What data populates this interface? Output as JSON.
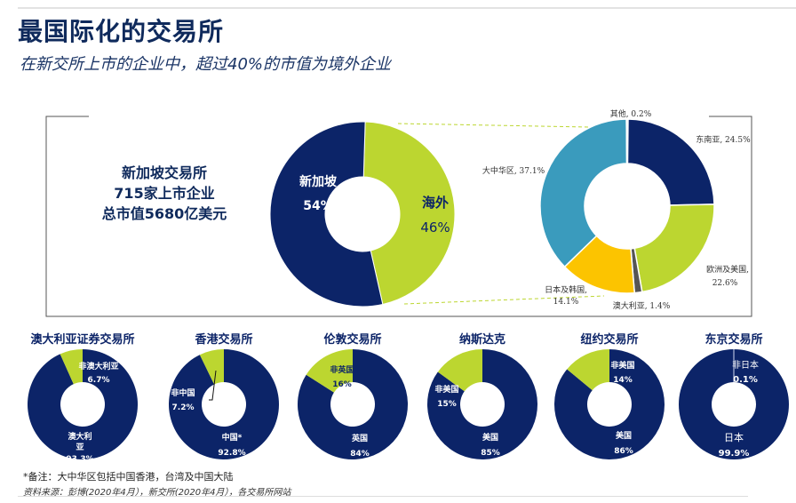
{
  "header": {
    "title": "最国际化的交易所",
    "subtitle": "在新交所上市的企业中，超过40%的市值为境外企业"
  },
  "summary": {
    "line1": "新加坡交易所",
    "line2": "715家上市企业",
    "line3": "总市值5680亿美元"
  },
  "colors": {
    "navy": "#0c2468",
    "green": "#bcd630",
    "teal": "#3a9bbd",
    "yellow": "#fcc400",
    "gray": "#555555"
  },
  "chart_data": [
    {
      "type": "pie",
      "variant": "donut",
      "slices": [
        {
          "label": "海外",
          "value": 46,
          "display": "46%",
          "color": "#bcd630"
        },
        {
          "label": "新加坡",
          "value": 54,
          "display": "54%",
          "color": "#0c2468"
        }
      ]
    },
    {
      "type": "pie",
      "variant": "donut",
      "slices": [
        {
          "label": "东南亚, 24.5%",
          "value": 24.5,
          "color": "#0c2468"
        },
        {
          "label": "欧洲及美国, 22.6%",
          "value": 22.6,
          "color": "#bcd630"
        },
        {
          "label": "澳大利亚, 1.4%",
          "value": 1.4,
          "color": "#555555"
        },
        {
          "label": "日本及韩国, 14.1%",
          "value": 14.1,
          "color": "#fcc400"
        },
        {
          "label": "大中华区, 37.1%",
          "value": 37.1,
          "color": "#3a9bbd"
        },
        {
          "label": "其他, 0.2%",
          "value": 0.2,
          "color": "#3a9bbd"
        }
      ]
    },
    {
      "type": "pie",
      "variant": "donut",
      "title": "澳大利亚证券交易所",
      "slices": [
        {
          "label": "非澳大利亚",
          "value": 6.7,
          "display": "6.7%"
        },
        {
          "label": "澳大利亚",
          "value": 93.3,
          "display": "93.3%"
        }
      ]
    },
    {
      "type": "pie",
      "variant": "donut",
      "title": "香港交易所",
      "slices": [
        {
          "label": "非中国",
          "value": 7.2,
          "display": "7.2%"
        },
        {
          "label": "中国*",
          "value": 92.8,
          "display": "92.8%"
        }
      ]
    },
    {
      "type": "pie",
      "variant": "donut",
      "title": "伦敦交易所",
      "slices": [
        {
          "label": "非英国",
          "value": 16,
          "display": "16%"
        },
        {
          "label": "英国",
          "value": 84,
          "display": "84%"
        }
      ]
    },
    {
      "type": "pie",
      "variant": "donut",
      "title": "纳斯达克",
      "slices": [
        {
          "label": "非美国",
          "value": 15,
          "display": "15%"
        },
        {
          "label": "美国",
          "value": 85,
          "display": "85%"
        }
      ]
    },
    {
      "type": "pie",
      "variant": "donut",
      "title": "纽约交易所",
      "slices": [
        {
          "label": "非美国",
          "value": 14,
          "display": "14%"
        },
        {
          "label": "美国",
          "value": 86,
          "display": "86%"
        }
      ]
    },
    {
      "type": "pie",
      "variant": "donut",
      "title": "东京交易所",
      "slices": [
        {
          "label": "非日本",
          "value": 0.1,
          "display": "0.1%"
        },
        {
          "label": "日本",
          "value": 99.9,
          "display": "99.9%"
        }
      ]
    }
  ],
  "footer": {
    "note": "*备注：大中华区包括中国香港，台湾及中国大陆",
    "source": "资料来源：彭博(2020年4月），新交所(2020年4月），各交易所网站"
  }
}
